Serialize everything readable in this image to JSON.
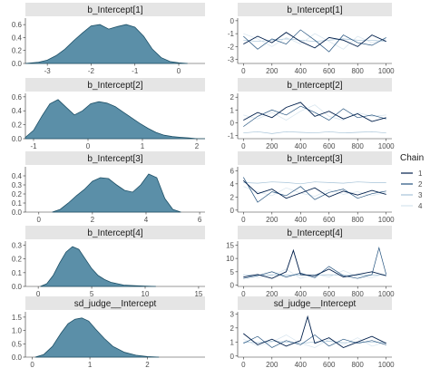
{
  "legend": {
    "title": "Chain",
    "entries": [
      {
        "label": "1",
        "color": "#011f4b"
      },
      {
        "label": "2",
        "color": "#23527e"
      },
      {
        "label": "3",
        "color": "#a6c3d8"
      },
      {
        "label": "4",
        "color": "#d6e4ee"
      }
    ]
  },
  "style": {
    "density_fill": "#5b8fa8",
    "density_outline": "#1d4f66",
    "strip_fill": "#e5e5e5"
  },
  "chart_data": [
    {
      "type": "area",
      "title": "b_Intercept[1]",
      "xlim": [
        -3.5,
        0.6
      ],
      "ylim": [
        0,
        0.7
      ],
      "x_ticks": [
        -3,
        -2,
        -1,
        0
      ],
      "x_tick_labels": [
        "-3",
        "-2",
        "-1",
        "0"
      ],
      "y_ticks": [
        0,
        0.2,
        0.4,
        0.6
      ],
      "y_tick_labels": [
        "0.0",
        "0.2",
        "0.4",
        "0.6"
      ],
      "x": [
        -3.5,
        -3.2,
        -3.0,
        -2.8,
        -2.6,
        -2.4,
        -2.2,
        -2.0,
        -1.8,
        -1.6,
        -1.4,
        -1.2,
        -1.0,
        -0.8,
        -0.6,
        -0.4,
        -0.2,
        0.0,
        0.2
      ],
      "y": [
        0.0,
        0.02,
        0.05,
        0.12,
        0.22,
        0.35,
        0.47,
        0.58,
        0.6,
        0.53,
        0.57,
        0.6,
        0.56,
        0.42,
        0.22,
        0.09,
        0.03,
        0.01,
        0.0
      ]
    },
    {
      "type": "line",
      "title": "b_Intercept[1]",
      "xlim": [
        -40,
        1040
      ],
      "ylim": [
        -3.3,
        0.2
      ],
      "x_ticks": [
        0,
        200,
        400,
        600,
        800,
        1000
      ],
      "x_tick_labels": [
        "0",
        "200",
        "400",
        "600",
        "800",
        "1000"
      ],
      "y_ticks": [
        -3,
        -2,
        -1,
        0
      ],
      "y_tick_labels": [
        "-3",
        "-2",
        "-1",
        "0"
      ],
      "series": [
        {
          "x": [
            0,
            100,
            200,
            300,
            400,
            500,
            600,
            700,
            800,
            900,
            1000
          ],
          "y": [
            -1.8,
            -1.2,
            -1.7,
            -0.9,
            -1.6,
            -2.1,
            -1.3,
            -1.5,
            -2.0,
            -1.1,
            -1.6
          ]
        },
        {
          "x": [
            0,
            100,
            200,
            300,
            400,
            500,
            600,
            700,
            800,
            900,
            1000
          ],
          "y": [
            -1.2,
            -2.2,
            -1.4,
            -1.8,
            -0.7,
            -1.5,
            -2.4,
            -1.1,
            -1.7,
            -1.9,
            -1.3
          ]
        },
        {
          "x": [
            0,
            100,
            200,
            300,
            400,
            500,
            600,
            700,
            800,
            900,
            1000
          ],
          "y": [
            -1.5,
            -1.6,
            -1.5,
            -1.4,
            -1.5,
            -1.6,
            -1.5,
            -1.4,
            -1.5,
            -1.5,
            -1.6
          ]
        },
        {
          "x": [
            0,
            100,
            200,
            300,
            400,
            500,
            600,
            700,
            800,
            900,
            1000
          ],
          "y": [
            -1.0,
            -1.4,
            -2.0,
            -1.3,
            -1.8,
            -1.0,
            -1.6,
            -2.2,
            -1.2,
            -1.7,
            -1.4
          ]
        }
      ]
    },
    {
      "type": "area",
      "title": "b_Intercept[2]",
      "xlim": [
        -1.15,
        2.15
      ],
      "ylim": [
        0,
        0.65
      ],
      "x_ticks": [
        -1,
        0,
        1,
        2
      ],
      "x_tick_labels": [
        "-1",
        "0",
        "1",
        "2"
      ],
      "y_ticks": [
        0,
        0.2,
        0.4,
        0.6
      ],
      "y_tick_labels": [
        "0.0",
        "0.2",
        "0.4",
        "0.6"
      ],
      "x": [
        -1.15,
        -1.0,
        -0.85,
        -0.7,
        -0.55,
        -0.4,
        -0.25,
        -0.1,
        0.05,
        0.2,
        0.35,
        0.5,
        0.65,
        0.8,
        0.95,
        1.1,
        1.25,
        1.4,
        1.55,
        1.7,
        1.85,
        2.0,
        2.15
      ],
      "y": [
        0.02,
        0.12,
        0.32,
        0.5,
        0.56,
        0.45,
        0.34,
        0.4,
        0.5,
        0.53,
        0.51,
        0.46,
        0.38,
        0.3,
        0.22,
        0.15,
        0.09,
        0.05,
        0.03,
        0.02,
        0.01,
        0.0,
        0.0
      ]
    },
    {
      "type": "line",
      "title": "b_Intercept[2]",
      "xlim": [
        -40,
        1040
      ],
      "ylim": [
        -1.25,
        2.3
      ],
      "x_ticks": [
        0,
        200,
        400,
        600,
        800,
        1000
      ],
      "x_tick_labels": [
        "0",
        "200",
        "400",
        "600",
        "800",
        "1000"
      ],
      "y_ticks": [
        -1,
        0,
        1,
        2
      ],
      "y_tick_labels": [
        "-1",
        "0",
        "1",
        "2"
      ],
      "series": [
        {
          "x": [
            0,
            100,
            200,
            300,
            400,
            500,
            600,
            700,
            800,
            900,
            1000
          ],
          "y": [
            0.2,
            0.8,
            0.4,
            1.2,
            1.6,
            0.5,
            0.9,
            0.3,
            0.7,
            0.1,
            0.4
          ]
        },
        {
          "x": [
            0,
            100,
            200,
            300,
            400,
            500,
            600,
            700,
            800,
            900,
            1000
          ],
          "y": [
            -0.3,
            0.5,
            1.0,
            0.6,
            1.3,
            0.8,
            0.2,
            1.1,
            0.4,
            0.6,
            0.3
          ]
        },
        {
          "x": [
            0,
            100,
            200,
            300,
            400,
            500,
            600,
            700,
            800,
            900,
            1000
          ],
          "y": [
            -0.8,
            -0.7,
            -0.85,
            -0.7,
            -0.75,
            -0.8,
            -0.7,
            -0.8,
            -0.75,
            -0.7,
            -0.8
          ]
        },
        {
          "x": [
            0,
            100,
            200,
            300,
            400,
            500,
            600,
            700,
            800,
            900,
            1000
          ],
          "y": [
            0.6,
            0.3,
            0.8,
            0.2,
            0.9,
            1.4,
            0.5,
            0.2,
            0.8,
            0.5,
            0.6
          ]
        }
      ]
    },
    {
      "type": "area",
      "title": "b_Intercept[3]",
      "xlim": [
        -0.5,
        6.2
      ],
      "ylim": [
        0,
        0.5
      ],
      "x_ticks": [
        0,
        2,
        4,
        6
      ],
      "x_tick_labels": [
        "0",
        "2",
        "4",
        "6"
      ],
      "y_ticks": [
        0,
        0.1,
        0.2,
        0.3,
        0.4
      ],
      "y_tick_labels": [
        "0.0",
        "0.1",
        "0.2",
        "0.3",
        "0.4"
      ],
      "x": [
        0.5,
        0.8,
        1.1,
        1.4,
        1.7,
        2.0,
        2.3,
        2.6,
        2.9,
        3.2,
        3.5,
        3.8,
        4.1,
        4.4,
        4.7,
        5.0,
        5.3
      ],
      "y": [
        0.0,
        0.03,
        0.1,
        0.18,
        0.25,
        0.34,
        0.38,
        0.37,
        0.3,
        0.24,
        0.22,
        0.3,
        0.42,
        0.38,
        0.15,
        0.03,
        0.0
      ]
    },
    {
      "type": "line",
      "title": "b_Intercept[3]",
      "xlim": [
        -40,
        1040
      ],
      "ylim": [
        -0.3,
        6.6
      ],
      "x_ticks": [
        0,
        200,
        400,
        600,
        800,
        1000
      ],
      "x_tick_labels": [
        "0",
        "200",
        "400",
        "600",
        "800",
        "1000"
      ],
      "y_ticks": [
        0,
        2,
        4,
        6
      ],
      "y_tick_labels": [
        "0",
        "2",
        "4",
        "6"
      ],
      "series": [
        {
          "x": [
            0,
            100,
            200,
            300,
            400,
            500,
            600,
            700,
            800,
            900,
            1000
          ],
          "y": [
            4.5,
            2.5,
            3.2,
            1.8,
            2.6,
            3.4,
            2.0,
            2.9,
            2.3,
            3.0,
            2.4
          ]
        },
        {
          "x": [
            0,
            100,
            200,
            300,
            400,
            500,
            600,
            700,
            800,
            900,
            1000
          ],
          "y": [
            5.0,
            1.2,
            2.8,
            2.2,
            3.6,
            1.6,
            2.7,
            3.2,
            1.8,
            2.5,
            2.9
          ]
        },
        {
          "x": [
            0,
            100,
            200,
            300,
            400,
            500,
            600,
            700,
            800,
            900,
            1000
          ],
          "y": [
            4.2,
            4.1,
            4.3,
            4.2,
            4.0,
            4.3,
            4.2,
            4.1,
            4.3,
            4.2,
            4.2
          ]
        },
        {
          "x": [
            0,
            100,
            200,
            300,
            400,
            500,
            600,
            700,
            800,
            900,
            1000
          ],
          "y": [
            3.6,
            2.8,
            2.2,
            3.4,
            2.6,
            2.1,
            3.1,
            2.4,
            2.8,
            2.2,
            2.7
          ]
        }
      ]
    },
    {
      "type": "area",
      "title": "b_Intercept[4]",
      "xlim": [
        -1.2,
        15.6
      ],
      "ylim": [
        0,
        0.33
      ],
      "x_ticks": [
        0,
        5,
        10,
        15
      ],
      "x_tick_labels": [
        "0",
        "5",
        "10",
        "15"
      ],
      "y_ticks": [
        0,
        0.1,
        0.2,
        0.3
      ],
      "y_tick_labels": [
        "0.0",
        "0.1",
        "0.2",
        "0.3"
      ],
      "x": [
        0.2,
        0.8,
        1.4,
        2.0,
        2.6,
        3.2,
        3.8,
        4.4,
        5.0,
        5.6,
        6.2,
        6.8,
        7.4,
        8.0,
        9.0,
        10.0,
        11.0
      ],
      "y": [
        0.0,
        0.02,
        0.08,
        0.17,
        0.25,
        0.29,
        0.27,
        0.2,
        0.13,
        0.08,
        0.05,
        0.03,
        0.02,
        0.01,
        0.005,
        0.002,
        0.0
      ]
    },
    {
      "type": "line",
      "title": "b_Intercept[4]",
      "xlim": [
        -40,
        1040
      ],
      "ylim": [
        -0.5,
        16.5
      ],
      "x_ticks": [
        0,
        200,
        400,
        600,
        800,
        1000
      ],
      "x_tick_labels": [
        "0",
        "200",
        "400",
        "600",
        "800",
        "1000"
      ],
      "y_ticks": [
        0,
        5,
        10,
        15
      ],
      "y_tick_labels": [
        "0",
        "5",
        "10",
        "15"
      ],
      "series": [
        {
          "x": [
            0,
            100,
            200,
            300,
            350,
            400,
            500,
            600,
            700,
            800,
            900,
            1000
          ],
          "y": [
            3,
            4,
            2.5,
            5,
            13,
            4,
            3.5,
            6,
            3,
            4,
            5,
            3.5
          ]
        },
        {
          "x": [
            0,
            100,
            200,
            300,
            400,
            500,
            600,
            700,
            800,
            900,
            950,
            1000
          ],
          "y": [
            2.5,
            3.5,
            5,
            3,
            4.5,
            2.8,
            7,
            3.5,
            2.5,
            4,
            14,
            4
          ]
        },
        {
          "x": [
            0,
            100,
            200,
            300,
            400,
            500,
            600,
            700,
            800,
            900,
            1000
          ],
          "y": [
            3.8,
            3.7,
            3.9,
            3.8,
            3.7,
            3.8,
            3.9,
            3.8,
            3.7,
            3.8,
            3.8
          ]
        },
        {
          "x": [
            0,
            100,
            200,
            300,
            400,
            500,
            600,
            700,
            800,
            900,
            1000
          ],
          "y": [
            4,
            2.8,
            3.5,
            6,
            2.5,
            4.2,
            3,
            5.5,
            3.2,
            2.8,
            4.5
          ]
        }
      ]
    },
    {
      "type": "area",
      "title": "sd_judge__Intercept",
      "xlim": [
        -0.12,
        3.0
      ],
      "ylim": [
        0,
        1.7
      ],
      "x_ticks": [
        0,
        1,
        2
      ],
      "x_tick_labels": [
        "0",
        "1",
        "2"
      ],
      "y_ticks": [
        0,
        0.5,
        1.0,
        1.5
      ],
      "y_tick_labels": [
        "0.0",
        "0.5",
        "1.0",
        "1.5"
      ],
      "x": [
        0.05,
        0.2,
        0.35,
        0.5,
        0.62,
        0.74,
        0.86,
        0.98,
        1.1,
        1.25,
        1.4,
        1.6,
        1.8,
        2.0,
        2.2
      ],
      "y": [
        0.0,
        0.1,
        0.4,
        0.9,
        1.25,
        1.42,
        1.47,
        1.35,
        1.05,
        0.7,
        0.4,
        0.18,
        0.07,
        0.02,
        0.0
      ]
    },
    {
      "type": "line",
      "title": "sd_judge__Intercept",
      "xlim": [
        -40,
        1040
      ],
      "ylim": [
        -0.08,
        3.15
      ],
      "x_ticks": [
        0,
        200,
        400,
        600,
        800,
        1000
      ],
      "x_tick_labels": [
        "0",
        "200",
        "400",
        "600",
        "800",
        "1000"
      ],
      "y_ticks": [
        0,
        1,
        2,
        3
      ],
      "y_tick_labels": [
        "0",
        "1",
        "2",
        "3"
      ],
      "series": [
        {
          "x": [
            0,
            100,
            200,
            300,
            400,
            450,
            500,
            600,
            700,
            800,
            900,
            1000
          ],
          "y": [
            1.6,
            0.8,
            1.2,
            0.7,
            1.1,
            2.8,
            0.9,
            1.3,
            0.6,
            1.0,
            1.4,
            0.9
          ]
        },
        {
          "x": [
            0,
            100,
            200,
            300,
            400,
            500,
            600,
            700,
            800,
            900,
            1000
          ],
          "y": [
            0.9,
            1.4,
            0.6,
            1.1,
            0.8,
            1.5,
            0.7,
            1.2,
            0.9,
            1.1,
            0.8
          ]
        },
        {
          "x": [
            0,
            100,
            200,
            300,
            400,
            500,
            600,
            700,
            800,
            900,
            1000
          ],
          "y": [
            1.0,
            0.95,
            1.05,
            1.0,
            0.9,
            1.0,
            1.05,
            0.95,
            1.0,
            1.0,
            0.95
          ]
        },
        {
          "x": [
            0,
            100,
            200,
            300,
            400,
            500,
            600,
            700,
            800,
            900,
            1000
          ],
          "y": [
            1.2,
            0.7,
            1.0,
            1.5,
            0.9,
            0.6,
            1.2,
            0.8,
            1.3,
            0.7,
            1.0
          ]
        }
      ]
    }
  ]
}
